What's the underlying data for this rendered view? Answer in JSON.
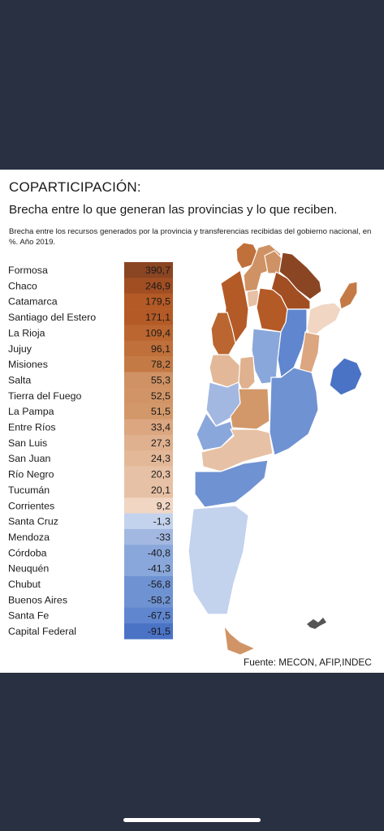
{
  "title": "COPARTICIPACIÓN:",
  "subtitle": "Brecha entre lo que generan las provincias y lo que reciben.",
  "description": "Brecha entre los recursos generados por la provincia y transferencias recibidas del gobierno nacional, en %. Año 2019.",
  "source": "Fuente: MECON, AFIP,INDEC",
  "chart_data": {
    "type": "table",
    "categories": [
      "Formosa",
      "Chaco",
      "Catamarca",
      "Santiago del Estero",
      "La Rioja",
      "Jujuy",
      "Misiones",
      "Salta",
      "Tierra del Fuego",
      "La Pampa",
      "Entre Ríos",
      "San Luis",
      "San Juan",
      "Río Negro",
      "Tucumán",
      "Corrientes",
      "Santa Cruz",
      "Mendoza",
      "Córdoba",
      "Neuquén",
      "Chubut",
      "Buenos Aires",
      "Santa Fe",
      "Capital Federal"
    ],
    "labels": [
      "390,7",
      "246,9",
      "179,5",
      "171,1",
      "109,4",
      "96,1",
      "78,2",
      "55,3",
      "52,5",
      "51,5",
      "33,4",
      "27,3",
      "24,3",
      "20,3",
      "20,1",
      "9,2",
      "-1,3",
      "-33",
      "-40,8",
      "-41,3",
      "-56,8",
      "-58,2",
      "-67,5",
      "-91,5"
    ],
    "values": [
      390.7,
      246.9,
      179.5,
      171.1,
      109.4,
      96.1,
      78.2,
      55.3,
      52.5,
      51.5,
      33.4,
      27.3,
      24.3,
      20.3,
      20.1,
      9.2,
      -1.3,
      -33,
      -40.8,
      -41.3,
      -56.8,
      -58.2,
      -67.5,
      -91.5
    ],
    "colors": [
      "#8a4523",
      "#a14e22",
      "#b45a26",
      "#b45a26",
      "#bb6630",
      "#c0703a",
      "#c47a45",
      "#cf9264",
      "#d19466",
      "#d29869",
      "#dba680",
      "#e0b18f",
      "#e3b898",
      "#e7c1a5",
      "#e7c1a5",
      "#f0d6c3",
      "#c3d2ed",
      "#a2b8e1",
      "#8aa7db",
      "#8aa7db",
      "#6f92d2",
      "#6f92d2",
      "#5f86cf",
      "#4a73c6"
    ]
  }
}
